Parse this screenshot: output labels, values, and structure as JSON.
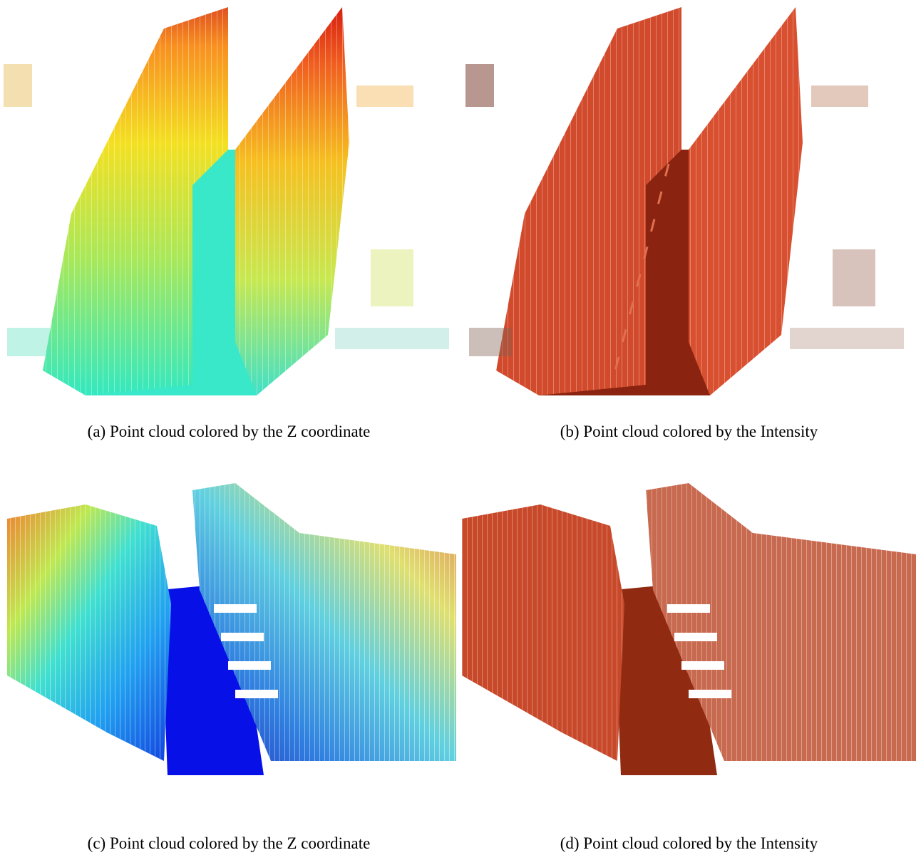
{
  "figure": {
    "panels": [
      {
        "id": "a",
        "label": "(a)",
        "caption": "Point cloud colored by the Z coordinate",
        "coloring": "jet-height"
      },
      {
        "id": "b",
        "label": "(b)",
        "caption": "Point cloud colored by the Intensity",
        "coloring": "intensity-red"
      },
      {
        "id": "c",
        "label": "(c)",
        "caption": "Point cloud colored by the Z coordinate",
        "coloring": "jet-height"
      },
      {
        "id": "d",
        "label": "(d)",
        "caption": "Point cloud colored by the Intensity",
        "coloring": "intensity-red"
      }
    ]
  }
}
